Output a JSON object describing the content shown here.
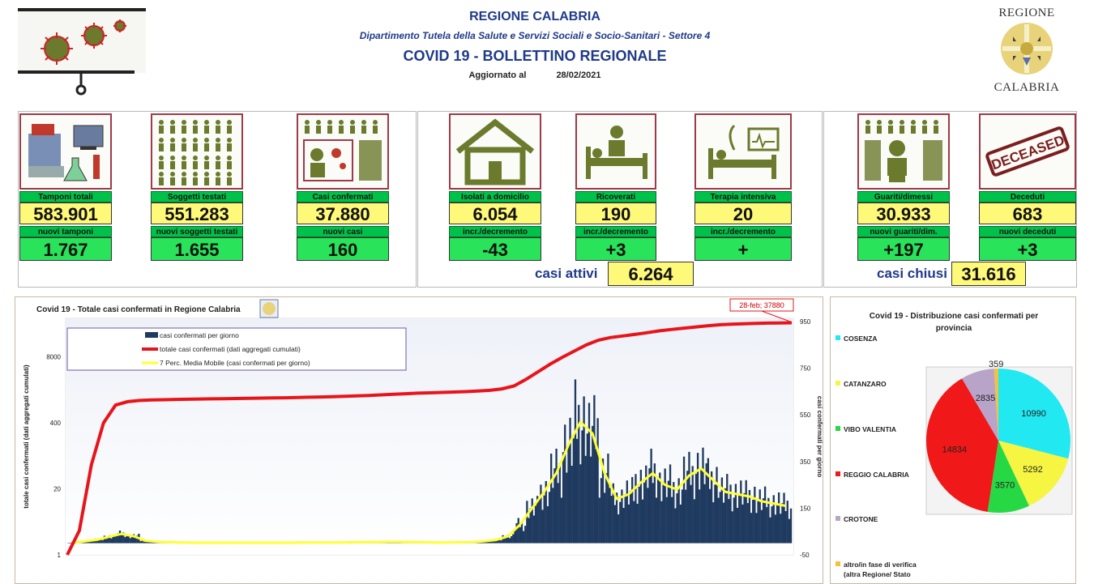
{
  "header": {
    "region": "REGIONE CALABRIA",
    "department": "Dipartimento Tutela della Salute e Servizi Sociali e Socio-Sanitari - Settore 4",
    "title": "COVID 19 - BOLLETTINO REGIONALE",
    "updated_label": "Aggiornato al",
    "updated_date": "28/02/2021",
    "emblem_top": "REGIONE",
    "emblem_bottom": "CALABRIA"
  },
  "cards": [
    {
      "label": "Tamponi totali",
      "value": "583.901",
      "sub_label": "nuovi tamponi",
      "sub_value": "1.767",
      "icon": "lab-equipment-icon"
    },
    {
      "label": "Soggetti testati",
      "value": "551.283",
      "sub_label": "nuovi soggetti testati",
      "sub_value": "1.655",
      "icon": "people-grid-icon"
    },
    {
      "label": "Casi confermati",
      "value": "37.880",
      "sub_label": "nuovi casi",
      "sub_value": "160",
      "icon": "virus-person-icon"
    },
    {
      "label": "Isolati a domicilio",
      "value": "6.054",
      "sub_label": "incr./decremento",
      "sub_value": "-43",
      "icon": "house-icon"
    },
    {
      "label": "Ricoverati",
      "value": "190",
      "sub_label": "incr./decremento",
      "sub_value": "+3",
      "icon": "hospital-bed-icon"
    },
    {
      "label": "Terapia intensiva",
      "value": "20",
      "sub_label": "incr./decremento",
      "sub_value": "+",
      "icon": "icu-icon"
    },
    {
      "label": "Guariti/dimessi",
      "value": "30.933",
      "sub_label": "nuovi guariti/dim.",
      "sub_value": "+197",
      "icon": "recovered-person-icon"
    },
    {
      "label": "Deceduti",
      "value": "683",
      "sub_label": "nuovi deceduti",
      "sub_value": "+3",
      "icon": "deceased-stamp-icon"
    }
  ],
  "deceased_stamp": "DECEASED",
  "summary": {
    "active_label": "casi attivi",
    "active_value": "6.264",
    "closed_label": "casi chiusi",
    "closed_value": "31.616"
  },
  "colors": {
    "card_label_bg": "#00c24a",
    "value_bg": "#fff97a",
    "sub_value_bg": "#29e35a",
    "bars": "#1f3a5f",
    "cumulative_line": "#e8141b",
    "moving_avg": "#ffff33"
  },
  "chart_data": [
    {
      "type": "bar+line",
      "title": "Covid 19 - Totale casi confermati in Regione Calabria",
      "ylabel_left": "totale casi confermati (dati aggregati cumulati)",
      "ylabel_right": "casi confermati per giorno",
      "y_left_scale": "log",
      "y_left_ticks": [
        "1",
        "20",
        "400",
        "8000"
      ],
      "y_right_ticks": [
        "-50",
        "150",
        "350",
        "550",
        "750",
        "950"
      ],
      "ylim_right": [
        -50,
        950
      ],
      "legend": [
        "casi confermati per giorno",
        "totale casi confermati (dati aggregati cumulati)",
        "7 Perc. Media Mobile (casi confermati per giorno)"
      ],
      "annotation": "28-feb; 37880",
      "grid": false,
      "weekly_daily_cases": [
        2,
        8,
        15,
        28,
        40,
        30,
        10,
        6,
        4,
        3,
        2,
        2,
        2,
        2,
        2,
        2,
        2,
        2,
        2,
        3,
        3,
        3,
        3,
        4,
        4,
        5,
        6,
        6,
        5,
        4,
        3,
        3,
        4,
        5,
        8,
        14,
        30,
        80,
        150,
        220,
        300,
        420,
        520,
        470,
        300,
        190,
        210,
        260,
        300,
        250,
        230,
        290,
        320,
        270,
        220,
        210,
        200,
        180,
        170,
        160
      ],
      "cumulative_total": [
        3,
        60,
        400,
        900,
        1050,
        1110,
        1140,
        1150,
        1165,
        1175,
        1185,
        1195,
        1205,
        1215,
        1225,
        1235,
        1245,
        1255,
        1270,
        1285,
        1300,
        1320,
        1340,
        1365,
        1395,
        1430,
        1470,
        1510,
        1545,
        1570,
        1600,
        1630,
        1660,
        1700,
        1760,
        1880,
        2150,
        2900,
        4100,
        5800,
        7900,
        10500,
        13900,
        17200,
        19400,
        20800,
        22300,
        24100,
        26200,
        27900,
        29500,
        31200,
        33000,
        34500,
        35500,
        36200,
        36800,
        37250,
        37600,
        37880
      ]
    },
    {
      "type": "pie",
      "title": "Covid 19 - Distribuzione casi confermati per provincia",
      "legend_position": "left",
      "categories": [
        "COSENZA",
        "CATANZARO",
        "VIBO VALENTIA",
        "REGGIO CALABRIA",
        "CROTONE",
        "altro/in fase di verifica (altra Regione/ Stato"
      ],
      "values": [
        10990,
        5292,
        3570,
        14834,
        2835,
        359
      ],
      "colors": [
        "#22e8f2",
        "#f5f542",
        "#27d845",
        "#f01818",
        "#b9a4c9",
        "#f2c43b"
      ]
    }
  ]
}
